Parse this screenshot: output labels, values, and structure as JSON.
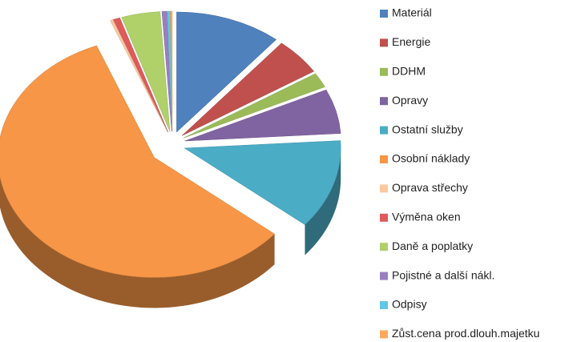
{
  "chart_data": {
    "type": "pie",
    "categories": [
      "Materiál",
      "Energie",
      "DDHM",
      "Opravy",
      "Ostatní služby",
      "Osobní náklady",
      "Oprava střechy",
      "Výměna oken",
      "Daně a poplatky",
      "Pojistné a další nákl.",
      "Odpisy",
      "Zůst.cena prod.dlouh.majetku"
    ],
    "values": [
      11,
      5,
      2,
      6,
      12,
      58,
      0.3,
      0.7,
      4,
      0.5,
      0.3,
      0.2
    ],
    "colors": [
      "#4f81bd",
      "#c0504d",
      "#9bbb59",
      "#8064a2",
      "#4bacc6",
      "#f79646",
      "#fac9a0",
      "#e05a5a",
      "#b0d06a",
      "#9a7fc0",
      "#5fc8e6",
      "#ffa95c"
    ],
    "legend": "right"
  }
}
